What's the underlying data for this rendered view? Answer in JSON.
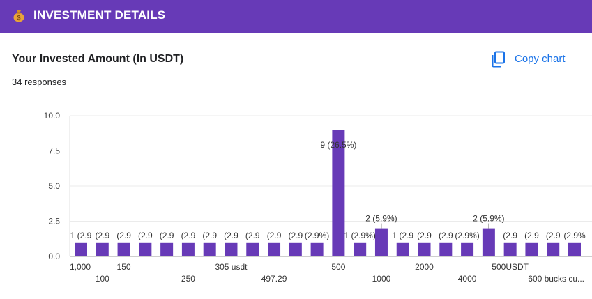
{
  "header": {
    "title": "INVESTMENT DETAILS",
    "icon": "money-bag-icon",
    "bg_color": "#673ab7"
  },
  "question": {
    "title": "Your Invested Amount (In USDT)",
    "responses": "34 responses"
  },
  "copy_button": {
    "label": "Copy chart",
    "icon": "copy-icon",
    "color": "#1a73e8"
  },
  "chart_data": {
    "type": "bar",
    "ylim": [
      0,
      10
    ],
    "yticks": [
      "0.0",
      "2.5",
      "5.0",
      "7.5",
      "10.0"
    ],
    "grid": true,
    "bar_color": "#673ab7",
    "categories": [
      "1,000",
      "100",
      "150",
      "",
      "",
      "250",
      "",
      "305 usdt",
      "",
      "497.29",
      "",
      "",
      "500",
      "",
      "1000",
      "",
      "2000",
      "",
      "4000",
      "",
      "500USDT",
      "",
      "",
      "600 bucks cu..."
    ],
    "values": [
      1,
      1,
      1,
      1,
      1,
      1,
      1,
      1,
      1,
      1,
      1,
      1,
      9,
      1,
      2,
      1,
      1,
      1,
      1,
      2,
      1,
      1,
      1,
      1
    ],
    "data_labels": [
      "1 (2.9%)",
      "1 (2.9%)",
      "1 (2.9%)",
      "1 (2.9%)",
      "1 (2.9%)",
      "1 (2.9%)",
      "1 (2.9%)",
      "1 (2.9%)",
      "1 (2.9%)",
      "1 (2.9%)",
      "1 (2.9%)",
      "1 (2.9%)",
      "9 (26.5%)",
      "1 (2.9%)",
      "2 (5.9%)",
      "1 (2.9%)",
      "1 (2.9%)",
      "1 (2.9%)",
      "1 (2.9%)",
      "2 (5.9%)",
      "1 (2.9%)",
      "1 (2.9%)",
      "1 (2.9%)",
      "1 (2.9%)"
    ],
    "data_labels_display": [
      "1 (2.9",
      "(2.9",
      "(2.9",
      "(2.9",
      "(2.9",
      "(2.9",
      "(2.9",
      "(2.9",
      "(2.9",
      "(2.9",
      "(2.9",
      "(2.9%)",
      "9 (26.5%)",
      "1 (2.9%)",
      "2 (5.9%)",
      "1  (2.9",
      "(2.9",
      "(2.9",
      "(2.9%)",
      "2 (5.9%)",
      "(2.9",
      "(2.9",
      "(2.9",
      "(2.9%"
    ]
  }
}
